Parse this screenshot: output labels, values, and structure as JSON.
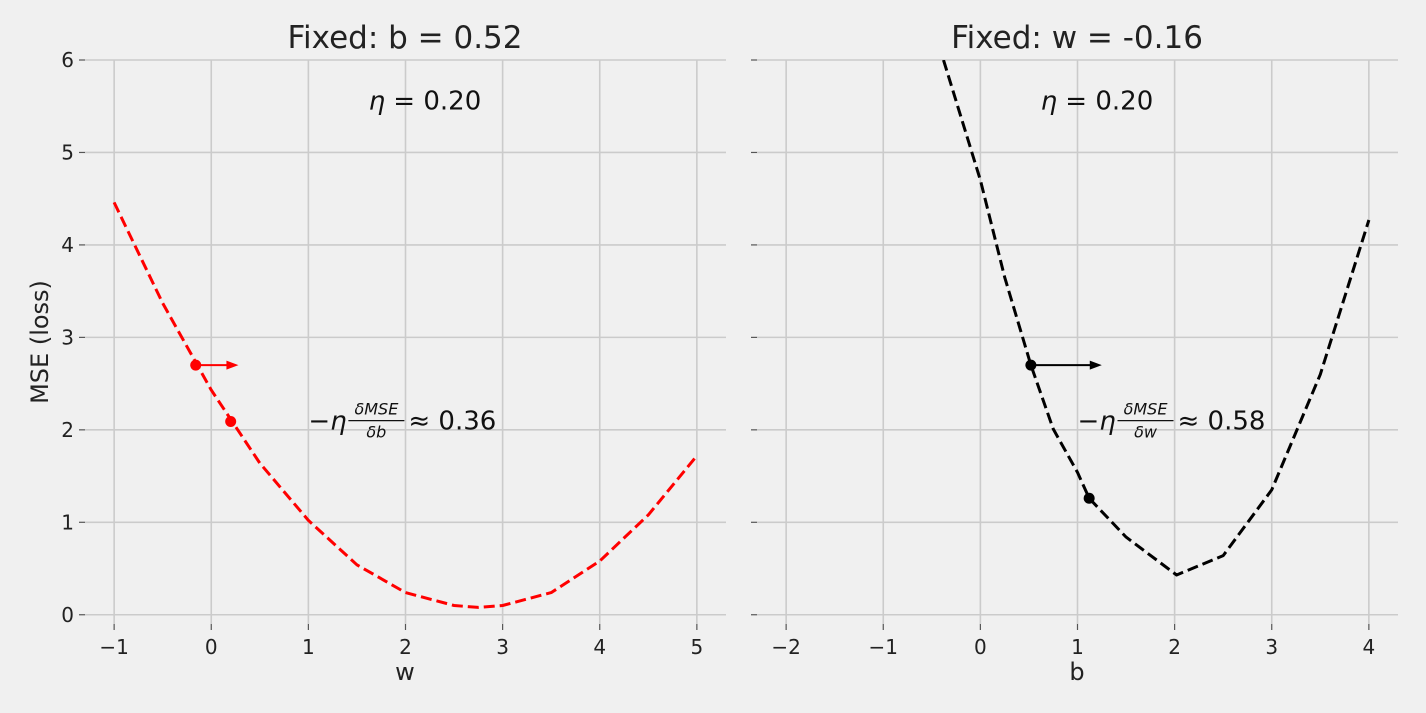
{
  "chart_data": [
    {
      "type": "line",
      "title": "Fixed: b = 0.52",
      "xlabel": "w",
      "ylabel": "MSE (loss)",
      "xlim": [
        -1.3,
        5.3
      ],
      "ylim": [
        -0.1,
        6.0
      ],
      "xticks": [
        -1,
        0,
        1,
        2,
        3,
        4,
        5
      ],
      "yticks": [
        0,
        1,
        2,
        3,
        4,
        5,
        6
      ],
      "grid": true,
      "curve_color": "#ff0000",
      "curve": {
        "x": [
          -1.0,
          -0.5,
          0.0,
          0.5,
          1.0,
          1.5,
          2.0,
          2.5,
          2.75,
          3.0,
          3.5,
          4.0,
          4.5,
          5.0
        ],
        "y": [
          4.46,
          3.37,
          2.43,
          1.64,
          1.02,
          0.54,
          0.24,
          0.1,
          0.08,
          0.1,
          0.24,
          0.58,
          1.08,
          1.72
        ]
      },
      "points": [
        {
          "x": -0.16,
          "y": 2.7
        },
        {
          "x": 0.2,
          "y": 2.09
        }
      ],
      "arrow": {
        "x_from": -0.16,
        "x_to": 0.28,
        "y": 2.7
      },
      "annotations": [
        {
          "text": "η = 0.20",
          "x": 2.2,
          "y": 5.55
        },
        {
          "text": "−η(δMSE/δb) ≈ 0.36",
          "math": {
            "prefix": "−η",
            "num": "δMSE",
            "den": "δb",
            "suffix": "≈ 0.36"
          },
          "x": 1.0,
          "y": 2.1
        }
      ]
    },
    {
      "type": "line",
      "title": "Fixed: w = -0.16",
      "xlabel": "b",
      "ylabel": "",
      "xlim": [
        -2.3,
        4.3
      ],
      "ylim": [
        -0.1,
        6.0
      ],
      "xticks": [
        -2,
        -1,
        0,
        1,
        2,
        3,
        4
      ],
      "yticks": [
        0,
        1,
        2,
        3,
        4,
        5,
        6
      ],
      "grid": true,
      "curve_color": "#000000",
      "curve": {
        "x": [
          -0.38,
          0.0,
          0.25,
          0.52,
          0.75,
          1.0,
          1.12,
          1.5,
          2.02,
          2.5,
          3.0,
          3.5,
          4.0
        ],
        "y": [
          6.0,
          4.7,
          3.65,
          2.7,
          2.01,
          1.54,
          1.26,
          0.84,
          0.43,
          0.64,
          1.35,
          2.6,
          4.27
        ]
      },
      "points": [
        {
          "x": 0.52,
          "y": 2.7
        },
        {
          "x": 1.12,
          "y": 1.26
        }
      ],
      "arrow": {
        "x_from": 0.52,
        "x_to": 1.25,
        "y": 2.7
      },
      "annotations": [
        {
          "text": "η = 0.20",
          "x": 1.2,
          "y": 5.55
        },
        {
          "text": "−η(δMSE/δw) ≈ 0.58",
          "math": {
            "prefix": "−η",
            "num": "δMSE",
            "den": "δw",
            "suffix": "≈ 0.58"
          },
          "x": 1.0,
          "y": 2.1
        }
      ]
    }
  ]
}
